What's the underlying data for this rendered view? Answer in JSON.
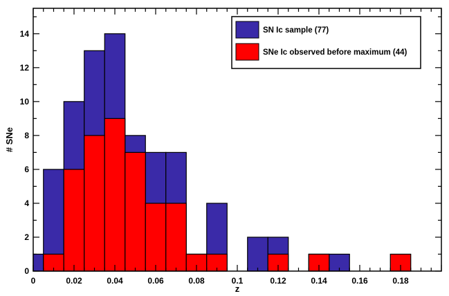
{
  "chart_data": {
    "type": "bar",
    "xlabel": "z",
    "ylabel": "# SNe",
    "xlim": [
      0,
      0.2
    ],
    "ylim": [
      0,
      15.5
    ],
    "bin_width": 0.01,
    "xticks": [
      0,
      0.02,
      0.04,
      0.06,
      0.08,
      0.1,
      0.12,
      0.14,
      0.16,
      0.18
    ],
    "xtick_labels": [
      "0",
      "0.02",
      "0.04",
      "0.06",
      "0.08",
      "0.1",
      "0.12",
      "0.14",
      "0.16",
      "0.18"
    ],
    "yticks": [
      0,
      2,
      4,
      6,
      8,
      10,
      12,
      14
    ],
    "ytick_labels": [
      "0",
      "2",
      "4",
      "6",
      "8",
      "10",
      "12",
      "14"
    ],
    "legend_position": "top-right",
    "grid": false,
    "series": [
      {
        "name": "SN Ic sample (77)",
        "color": "#3a2aa8",
        "bins": [
          {
            "x0": -0.005,
            "x1": 0.005,
            "y": 1
          },
          {
            "x0": 0.005,
            "x1": 0.015,
            "y": 6
          },
          {
            "x0": 0.015,
            "x1": 0.025,
            "y": 10
          },
          {
            "x0": 0.025,
            "x1": 0.035,
            "y": 13
          },
          {
            "x0": 0.035,
            "x1": 0.045,
            "y": 14
          },
          {
            "x0": 0.045,
            "x1": 0.055,
            "y": 8
          },
          {
            "x0": 0.055,
            "x1": 0.065,
            "y": 7
          },
          {
            "x0": 0.065,
            "x1": 0.075,
            "y": 7
          },
          {
            "x0": 0.075,
            "x1": 0.085,
            "y": 1
          },
          {
            "x0": 0.085,
            "x1": 0.095,
            "y": 4
          },
          {
            "x0": 0.105,
            "x1": 0.115,
            "y": 2
          },
          {
            "x0": 0.115,
            "x1": 0.125,
            "y": 2
          },
          {
            "x0": 0.135,
            "x1": 0.145,
            "y": 1
          },
          {
            "x0": 0.145,
            "x1": 0.155,
            "y": 1
          }
        ]
      },
      {
        "name": "SNe Ic observed before maximum (44)",
        "color": "#ff0000",
        "bins": [
          {
            "x0": 0.005,
            "x1": 0.015,
            "y": 1
          },
          {
            "x0": 0.015,
            "x1": 0.025,
            "y": 6
          },
          {
            "x0": 0.025,
            "x1": 0.035,
            "y": 8
          },
          {
            "x0": 0.035,
            "x1": 0.045,
            "y": 9
          },
          {
            "x0": 0.045,
            "x1": 0.055,
            "y": 7
          },
          {
            "x0": 0.055,
            "x1": 0.065,
            "y": 4
          },
          {
            "x0": 0.065,
            "x1": 0.075,
            "y": 4
          },
          {
            "x0": 0.075,
            "x1": 0.085,
            "y": 1
          },
          {
            "x0": 0.085,
            "x1": 0.095,
            "y": 1
          },
          {
            "x0": 0.115,
            "x1": 0.125,
            "y": 1
          },
          {
            "x0": 0.135,
            "x1": 0.145,
            "y": 1
          },
          {
            "x0": 0.175,
            "x1": 0.185,
            "y": 1
          }
        ]
      }
    ]
  }
}
